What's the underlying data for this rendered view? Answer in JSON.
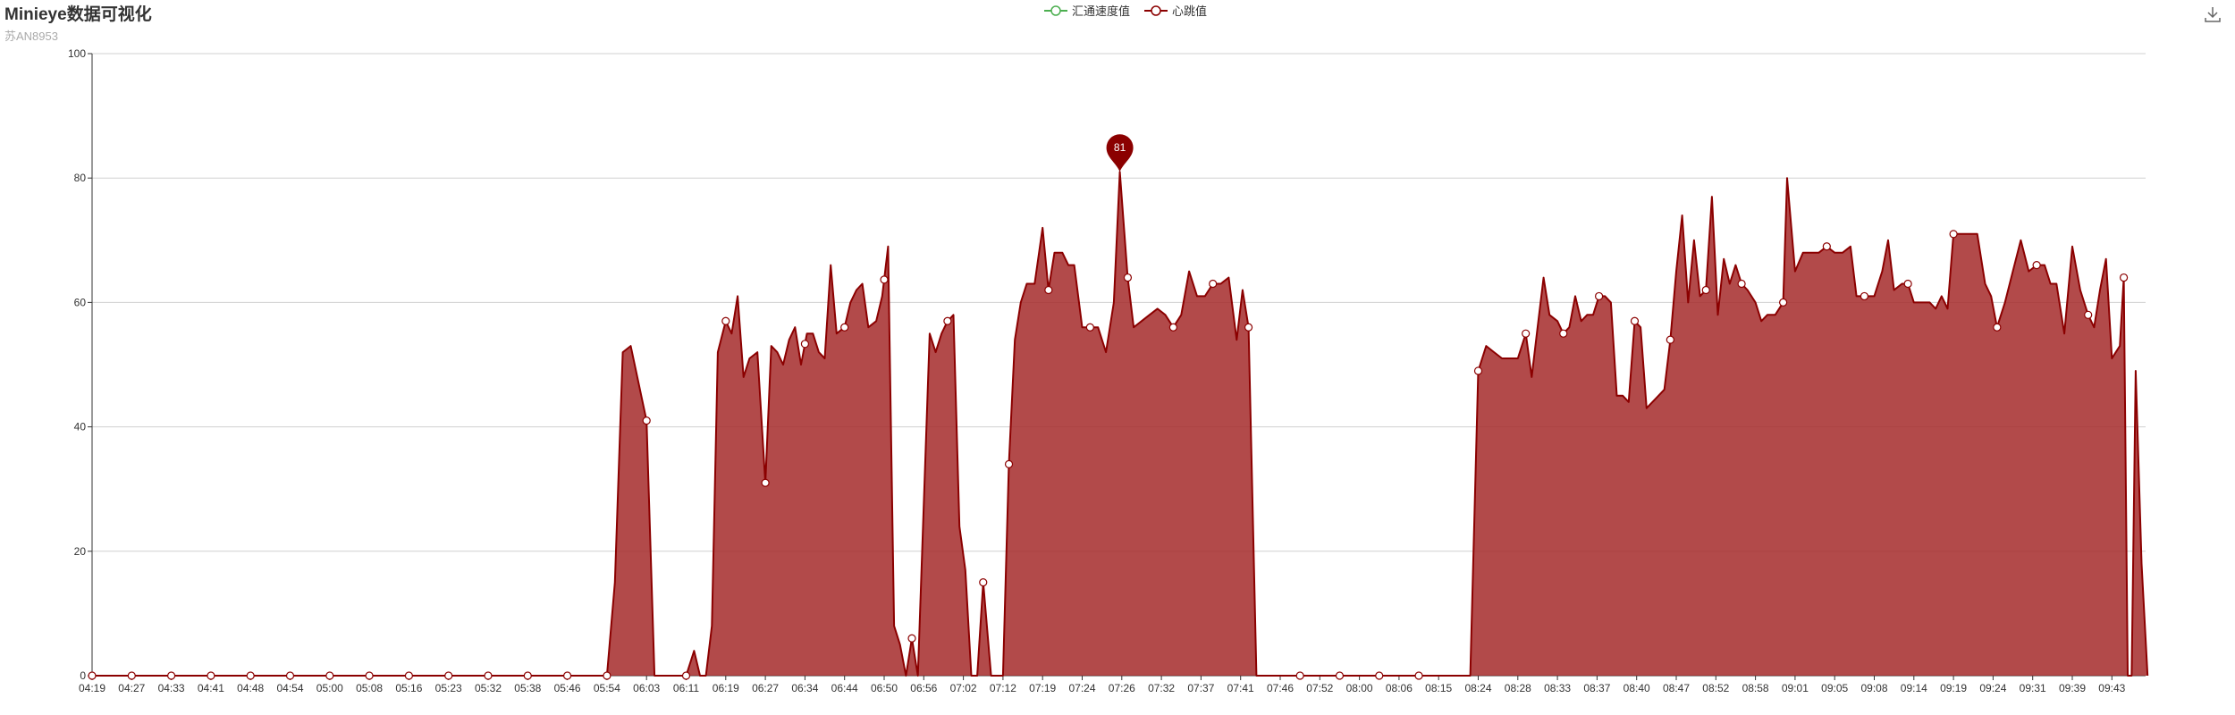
{
  "title": "Minieye数据可视化",
  "subtitle": "苏AN8953",
  "legend": [
    {
      "name": "汇通速度值",
      "color": "#4caf50"
    },
    {
      "name": "心跳值",
      "color": "#8b0000"
    }
  ],
  "toolbar": {
    "download_icon": "download-icon"
  },
  "colors": {
    "area_fill": "#a52a2a",
    "line": "#8b0000",
    "grid": "#d0d0d0"
  },
  "chart_data": {
    "type": "area",
    "ylim": [
      0,
      100
    ],
    "yticks": [
      0,
      20,
      40,
      60,
      80,
      100
    ],
    "x_tick_labels": [
      "04:19",
      "04:27",
      "04:33",
      "04:41",
      "04:48",
      "04:54",
      "05:00",
      "05:08",
      "05:16",
      "05:23",
      "05:32",
      "05:38",
      "05:46",
      "05:54",
      "06:03",
      "06:11",
      "06:19",
      "06:27",
      "06:34",
      "06:44",
      "06:50",
      "06:56",
      "07:02",
      "07:12",
      "07:19",
      "07:24",
      "07:26",
      "07:32",
      "07:37",
      "07:41",
      "07:46",
      "07:52",
      "08:00",
      "08:06",
      "08:15",
      "08:24",
      "08:28",
      "08:33",
      "08:37",
      "08:40",
      "08:47",
      "08:52",
      "08:58",
      "09:01",
      "09:05",
      "09:08",
      "09:14",
      "09:19",
      "09:24",
      "09:31",
      "09:39",
      "09:43"
    ],
    "series": [
      {
        "name": "汇通速度值",
        "values": []
      },
      {
        "name": "心跳值",
        "points": [
          [
            0,
            0
          ],
          [
            1,
            0
          ],
          [
            2,
            0
          ],
          [
            3,
            0
          ],
          [
            4,
            0
          ],
          [
            5,
            0
          ],
          [
            6,
            0
          ],
          [
            7,
            0
          ],
          [
            8,
            0
          ],
          [
            9,
            0
          ],
          [
            10,
            0
          ],
          [
            11,
            0
          ],
          [
            12,
            0
          ],
          [
            13,
            0
          ],
          [
            13.2,
            15
          ],
          [
            13.4,
            52
          ],
          [
            13.6,
            53
          ],
          [
            14,
            41
          ],
          [
            14.2,
            0
          ],
          [
            14.5,
            0
          ],
          [
            15,
            0
          ],
          [
            15.2,
            4
          ],
          [
            15.35,
            0
          ],
          [
            15.5,
            0
          ],
          [
            15.65,
            8
          ],
          [
            15.8,
            52
          ],
          [
            16,
            57
          ],
          [
            16.15,
            55
          ],
          [
            16.3,
            61
          ],
          [
            16.45,
            48
          ],
          [
            16.6,
            51
          ],
          [
            16.8,
            52
          ],
          [
            17,
            31
          ],
          [
            17.15,
            53
          ],
          [
            17.3,
            52
          ],
          [
            17.45,
            50
          ],
          [
            17.6,
            54
          ],
          [
            17.75,
            56
          ],
          [
            17.9,
            50
          ],
          [
            18.05,
            55
          ],
          [
            18.2,
            55
          ],
          [
            18.35,
            52
          ],
          [
            18.5,
            51
          ],
          [
            18.65,
            66
          ],
          [
            18.8,
            55
          ],
          [
            19,
            56
          ],
          [
            19.15,
            60
          ],
          [
            19.3,
            62
          ],
          [
            19.45,
            63
          ],
          [
            19.6,
            56
          ],
          [
            19.8,
            57
          ],
          [
            19.95,
            61
          ],
          [
            20.1,
            69
          ],
          [
            20.25,
            8
          ],
          [
            20.4,
            5
          ],
          [
            20.55,
            0
          ],
          [
            20.7,
            6
          ],
          [
            20.85,
            0
          ],
          [
            21.15,
            55
          ],
          [
            21.3,
            52
          ],
          [
            21.45,
            55
          ],
          [
            21.6,
            57
          ],
          [
            21.75,
            58
          ],
          [
            21.9,
            24
          ],
          [
            22.05,
            17
          ],
          [
            22.2,
            0
          ],
          [
            22.35,
            0
          ],
          [
            22.5,
            15
          ],
          [
            22.7,
            0
          ],
          [
            23,
            0
          ],
          [
            23.15,
            34
          ],
          [
            23.3,
            54
          ],
          [
            23.45,
            60
          ],
          [
            23.6,
            63
          ],
          [
            23.8,
            63
          ],
          [
            24,
            72
          ],
          [
            24.15,
            62
          ],
          [
            24.3,
            68
          ],
          [
            24.5,
            68
          ],
          [
            24.65,
            66
          ],
          [
            24.8,
            66
          ],
          [
            25,
            56
          ],
          [
            25.2,
            56
          ],
          [
            25.4,
            56
          ],
          [
            25.6,
            52
          ],
          [
            25.8,
            60
          ],
          [
            25.95,
            81
          ],
          [
            26.15,
            64
          ],
          [
            26.3,
            56
          ],
          [
            26.5,
            57
          ],
          [
            26.7,
            58
          ],
          [
            26.9,
            59
          ],
          [
            27.1,
            58
          ],
          [
            27.3,
            56
          ],
          [
            27.5,
            58
          ],
          [
            27.7,
            65
          ],
          [
            27.9,
            61
          ],
          [
            28.1,
            61
          ],
          [
            28.3,
            63
          ],
          [
            28.5,
            63
          ],
          [
            28.7,
            64
          ],
          [
            28.9,
            54
          ],
          [
            29.05,
            62
          ],
          [
            29.2,
            56
          ],
          [
            29.4,
            0
          ],
          [
            29.6,
            0
          ],
          [
            30,
            0
          ],
          [
            30.5,
            0
          ],
          [
            31,
            0
          ],
          [
            31.5,
            0
          ],
          [
            32,
            0
          ],
          [
            33,
            0
          ],
          [
            34,
            0
          ],
          [
            34.8,
            0
          ],
          [
            35,
            49
          ],
          [
            35.2,
            53
          ],
          [
            35.4,
            52
          ],
          [
            35.6,
            51
          ],
          [
            35.8,
            51
          ],
          [
            36,
            51
          ],
          [
            36.2,
            55
          ],
          [
            36.35,
            48
          ],
          [
            36.5,
            56
          ],
          [
            36.65,
            64
          ],
          [
            36.8,
            58
          ],
          [
            37,
            57
          ],
          [
            37.15,
            55
          ],
          [
            37.3,
            56
          ],
          [
            37.45,
            61
          ],
          [
            37.6,
            57
          ],
          [
            37.75,
            58
          ],
          [
            37.9,
            58
          ],
          [
            38.05,
            61
          ],
          [
            38.2,
            61
          ],
          [
            38.35,
            60
          ],
          [
            38.5,
            45
          ],
          [
            38.65,
            45
          ],
          [
            38.8,
            44
          ],
          [
            38.95,
            57
          ],
          [
            39.1,
            56
          ],
          [
            39.25,
            43
          ],
          [
            39.4,
            44
          ],
          [
            39.55,
            45
          ],
          [
            39.7,
            46
          ],
          [
            39.85,
            54
          ],
          [
            40,
            65
          ],
          [
            40.15,
            74
          ],
          [
            40.3,
            60
          ],
          [
            40.45,
            70
          ],
          [
            40.6,
            61
          ],
          [
            40.75,
            62
          ],
          [
            40.9,
            77
          ],
          [
            41.05,
            58
          ],
          [
            41.2,
            67
          ],
          [
            41.35,
            63
          ],
          [
            41.5,
            66
          ],
          [
            41.65,
            63
          ],
          [
            41.8,
            62
          ],
          [
            42,
            60
          ],
          [
            42.15,
            57
          ],
          [
            42.3,
            58
          ],
          [
            42.5,
            58
          ],
          [
            42.7,
            60
          ],
          [
            42.8,
            80
          ],
          [
            43,
            65
          ],
          [
            43.2,
            68
          ],
          [
            43.4,
            68
          ],
          [
            43.6,
            68
          ],
          [
            43.8,
            69
          ],
          [
            44,
            68
          ],
          [
            44.2,
            68
          ],
          [
            44.4,
            69
          ],
          [
            44.55,
            61
          ],
          [
            44.75,
            61
          ],
          [
            45,
            61
          ],
          [
            45.2,
            65
          ],
          [
            45.35,
            70
          ],
          [
            45.5,
            62
          ],
          [
            45.7,
            63
          ],
          [
            45.85,
            63
          ],
          [
            46,
            60
          ],
          [
            46.2,
            60
          ],
          [
            46.4,
            60
          ],
          [
            46.55,
            59
          ],
          [
            46.7,
            61
          ],
          [
            46.85,
            59
          ],
          [
            47,
            71
          ],
          [
            47.2,
            71
          ],
          [
            47.4,
            71
          ],
          [
            47.6,
            71
          ],
          [
            47.8,
            63
          ],
          [
            47.95,
            61
          ],
          [
            48.1,
            56
          ],
          [
            48.3,
            60
          ],
          [
            48.5,
            65
          ],
          [
            48.7,
            70
          ],
          [
            48.9,
            65
          ],
          [
            49.1,
            66
          ],
          [
            49.3,
            66
          ],
          [
            49.45,
            63
          ],
          [
            49.6,
            63
          ],
          [
            49.8,
            55
          ],
          [
            50,
            69
          ],
          [
            50.2,
            62
          ],
          [
            50.4,
            58
          ],
          [
            50.55,
            56
          ],
          [
            50.7,
            62
          ],
          [
            50.85,
            67
          ],
          [
            51,
            51
          ],
          [
            51.1,
            52
          ],
          [
            51.2,
            53
          ],
          [
            51.3,
            64
          ],
          [
            51.4,
            0
          ],
          [
            51.5,
            0
          ],
          [
            51.6,
            49
          ],
          [
            51.75,
            18
          ],
          [
            51.9,
            0
          ]
        ]
      }
    ],
    "markers_at": [
      0,
      1,
      2,
      3,
      4,
      5,
      6,
      7,
      8,
      9,
      10,
      11,
      12,
      13,
      14,
      15,
      16,
      17,
      18,
      19,
      20,
      20.7,
      21.6,
      22.5,
      23.15,
      24.15,
      25.2,
      26.15,
      27.3,
      28.3,
      29.2,
      30.5,
      31.5,
      32.5,
      33.5,
      35,
      36.2,
      37.15,
      38.05,
      38.95,
      39.85,
      40.75,
      41.65,
      42.7,
      43.8,
      44.75,
      45.85,
      47,
      48.1,
      49.1,
      50.4,
      51.3
    ],
    "markpoint": {
      "label": "81",
      "x_index": 25.95,
      "value": 81
    }
  }
}
